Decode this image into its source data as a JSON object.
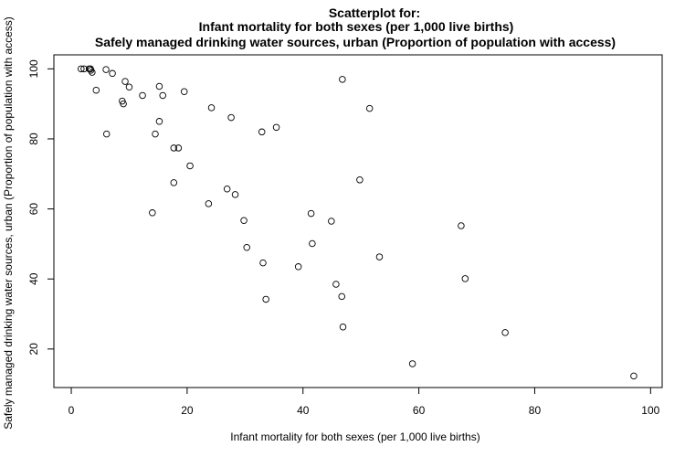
{
  "chart_data": {
    "type": "scatter",
    "title": [
      "Scatterplot for:",
      "Infant mortality for both sexes (per 1,000 live births)",
      "Safely managed drinking water sources, urban (Proportion of population with access)"
    ],
    "xlabel": "Infant mortality for both sexes (per 1,000 live births)",
    "ylabel": "Safely managed drinking water sources, urban (Proportion of population with access)",
    "xlim": [
      -3,
      102
    ],
    "ylim": [
      9,
      104
    ],
    "xticks": [
      0,
      20,
      40,
      60,
      80,
      100
    ],
    "yticks": [
      20,
      40,
      60,
      80,
      100
    ],
    "grid": false,
    "marker": "open-circle",
    "points": [
      {
        "x": 1.7,
        "y": 100
      },
      {
        "x": 2.2,
        "y": 100
      },
      {
        "x": 3.1,
        "y": 100
      },
      {
        "x": 3.4,
        "y": 99.6
      },
      {
        "x": 3.6,
        "y": 99.0
      },
      {
        "x": 3.3,
        "y": 100
      },
      {
        "x": 4.3,
        "y": 93.9
      },
      {
        "x": 6.0,
        "y": 99.8
      },
      {
        "x": 7.1,
        "y": 98.7
      },
      {
        "x": 6.1,
        "y": 81.4
      },
      {
        "x": 8.8,
        "y": 90.8
      },
      {
        "x": 9.0,
        "y": 90.0
      },
      {
        "x": 9.3,
        "y": 96.4
      },
      {
        "x": 10.0,
        "y": 94.8
      },
      {
        "x": 12.3,
        "y": 92.4
      },
      {
        "x": 14.0,
        "y": 58.9
      },
      {
        "x": 14.5,
        "y": 81.4
      },
      {
        "x": 15.2,
        "y": 85.0
      },
      {
        "x": 15.2,
        "y": 95.0
      },
      {
        "x": 15.8,
        "y": 92.4
      },
      {
        "x": 17.7,
        "y": 77.4
      },
      {
        "x": 17.7,
        "y": 67.5
      },
      {
        "x": 18.5,
        "y": 77.4
      },
      {
        "x": 19.5,
        "y": 93.5
      },
      {
        "x": 20.5,
        "y": 72.3
      },
      {
        "x": 23.7,
        "y": 61.5
      },
      {
        "x": 24.2,
        "y": 88.9
      },
      {
        "x": 26.9,
        "y": 65.7
      },
      {
        "x": 27.6,
        "y": 86.1
      },
      {
        "x": 28.3,
        "y": 64.1
      },
      {
        "x": 29.8,
        "y": 56.7
      },
      {
        "x": 30.3,
        "y": 49.0
      },
      {
        "x": 32.9,
        "y": 82.0
      },
      {
        "x": 33.1,
        "y": 44.6
      },
      {
        "x": 33.6,
        "y": 34.2
      },
      {
        "x": 35.4,
        "y": 83.3
      },
      {
        "x": 39.2,
        "y": 43.5
      },
      {
        "x": 41.4,
        "y": 58.7
      },
      {
        "x": 41.6,
        "y": 50.1
      },
      {
        "x": 44.9,
        "y": 56.5
      },
      {
        "x": 45.7,
        "y": 38.5
      },
      {
        "x": 46.7,
        "y": 35.0
      },
      {
        "x": 46.9,
        "y": 26.3
      },
      {
        "x": 46.8,
        "y": 97.0
      },
      {
        "x": 49.8,
        "y": 68.3
      },
      {
        "x": 51.5,
        "y": 88.7
      },
      {
        "x": 53.2,
        "y": 46.3
      },
      {
        "x": 58.9,
        "y": 15.8
      },
      {
        "x": 67.3,
        "y": 55.2
      },
      {
        "x": 68.0,
        "y": 40.1
      },
      {
        "x": 74.9,
        "y": 24.7
      },
      {
        "x": 97.1,
        "y": 12.3
      }
    ]
  }
}
